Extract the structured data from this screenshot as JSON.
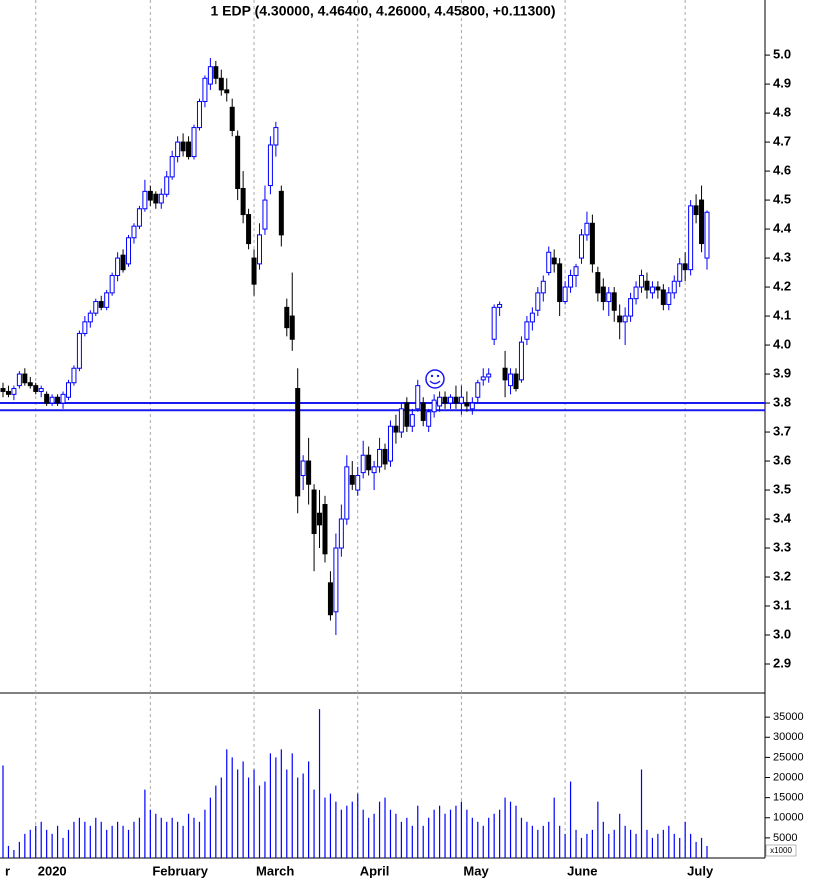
{
  "chart_data": [
    {
      "type": "candlestick",
      "title": "1 EDP (4.30000, 4.46400, 4.26000, 4.45800, +0.11300)",
      "up_color": "#0000ff",
      "down_color": "#000000",
      "line_color": "#1a1aee",
      "hlines": [
        3.8,
        3.775
      ],
      "ylim": [
        2.8,
        5.19
      ],
      "yticks": [
        2.9,
        {
          "value": 3,
          "label": "3.0"
        },
        3.1,
        3.2,
        3.3,
        3.4,
        3.5,
        3.6,
        3.7,
        3.8,
        3.9,
        {
          "value": 4,
          "label": "4.0"
        },
        4.1,
        4.2,
        4.3,
        4.4,
        4.5,
        4.6,
        4.7,
        4.8,
        4.9,
        {
          "value": 5,
          "label": "5.0"
        }
      ],
      "categories": [
        "r",
        null,
        null,
        null,
        null,
        null,
        "2020",
        null,
        null,
        null,
        null,
        null,
        null,
        null,
        null,
        null,
        null,
        null,
        null,
        null,
        null,
        null,
        null,
        null,
        null,
        null,
        null,
        "February",
        null,
        null,
        null,
        null,
        null,
        null,
        null,
        null,
        null,
        null,
        null,
        null,
        null,
        null,
        null,
        null,
        null,
        null,
        "March",
        null,
        null,
        null,
        null,
        null,
        null,
        null,
        null,
        null,
        null,
        null,
        null,
        null,
        null,
        null,
        null,
        null,
        null,
        "April",
        null,
        null,
        null,
        null,
        null,
        null,
        null,
        null,
        null,
        null,
        null,
        null,
        null,
        null,
        null,
        null,
        null,
        null,
        "May",
        null,
        null,
        null,
        null,
        null,
        null,
        null,
        null,
        null,
        null,
        null,
        null,
        null,
        null,
        null,
        null,
        null,
        null,
        "June",
        null,
        null,
        null,
        null,
        null,
        null,
        null,
        null,
        null,
        null,
        null,
        null,
        null,
        null,
        null,
        null,
        null,
        null,
        null,
        null,
        null,
        "July",
        null,
        null,
        null,
        null
      ],
      "ohlc": [
        [
          3.85,
          3.87,
          3.82,
          3.84
        ],
        [
          3.84,
          3.86,
          3.82,
          3.83
        ],
        [
          3.83,
          3.86,
          3.81,
          3.85
        ],
        [
          3.86,
          3.91,
          3.85,
          3.9
        ],
        [
          3.9,
          3.92,
          3.86,
          3.87
        ],
        [
          3.87,
          3.89,
          3.85,
          3.86
        ],
        [
          3.86,
          3.87,
          3.83,
          3.84
        ],
        [
          3.84,
          3.86,
          3.82,
          3.85
        ],
        [
          3.83,
          3.84,
          3.79,
          3.8
        ],
        [
          3.8,
          3.83,
          3.79,
          3.82
        ],
        [
          3.82,
          3.83,
          3.79,
          3.8
        ],
        [
          3.8,
          3.84,
          3.78,
          3.83
        ],
        [
          3.82,
          3.88,
          3.81,
          3.87
        ],
        [
          3.87,
          3.93,
          3.86,
          3.92
        ],
        [
          3.92,
          4.05,
          3.91,
          4.04
        ],
        [
          4.04,
          4.1,
          4.03,
          4.08
        ],
        [
          4.08,
          4.12,
          4.06,
          4.11
        ],
        [
          4.11,
          4.16,
          4.1,
          4.15
        ],
        [
          4.15,
          4.17,
          4.12,
          4.13
        ],
        [
          4.13,
          4.19,
          4.12,
          4.18
        ],
        [
          4.18,
          4.25,
          4.17,
          4.24
        ],
        [
          4.24,
          4.32,
          4.22,
          4.3
        ],
        [
          4.31,
          4.33,
          4.25,
          4.26
        ],
        [
          4.28,
          4.38,
          4.27,
          4.37
        ],
        [
          4.37,
          4.42,
          4.35,
          4.41
        ],
        [
          4.41,
          4.48,
          4.4,
          4.47
        ],
        [
          4.47,
          4.57,
          4.46,
          4.53
        ],
        [
          4.53,
          4.55,
          4.48,
          4.5
        ],
        [
          4.52,
          4.53,
          4.47,
          4.49
        ],
        [
          4.49,
          4.54,
          4.47,
          4.52
        ],
        [
          4.52,
          4.6,
          4.51,
          4.58
        ],
        [
          4.58,
          4.67,
          4.57,
          4.65
        ],
        [
          4.65,
          4.72,
          4.63,
          4.7
        ],
        [
          4.7,
          4.73,
          4.65,
          4.67
        ],
        [
          4.7,
          4.72,
          4.64,
          4.65
        ],
        [
          4.65,
          4.76,
          4.64,
          4.75
        ],
        [
          4.75,
          4.85,
          4.74,
          4.84
        ],
        [
          4.84,
          4.93,
          4.82,
          4.92
        ],
        [
          4.9,
          4.99,
          4.88,
          4.96
        ],
        [
          4.96,
          4.98,
          4.9,
          4.92
        ],
        [
          4.92,
          4.95,
          4.86,
          4.88
        ],
        [
          4.88,
          4.92,
          4.84,
          4.87
        ],
        [
          4.82,
          4.85,
          4.72,
          4.74
        ],
        [
          4.72,
          4.74,
          4.5,
          4.54
        ],
        [
          4.54,
          4.6,
          4.42,
          4.45
        ],
        [
          4.45,
          4.47,
          4.33,
          4.35
        ],
        [
          4.3,
          4.33,
          4.17,
          4.21
        ],
        [
          4.28,
          4.42,
          4.26,
          4.38
        ],
        [
          4.4,
          4.55,
          4.38,
          4.5
        ],
        [
          4.55,
          4.72,
          4.52,
          4.69
        ],
        [
          4.69,
          4.77,
          4.65,
          4.75
        ],
        [
          4.53,
          4.55,
          4.34,
          4.38
        ],
        [
          4.13,
          4.16,
          4.03,
          4.06
        ],
        [
          4.1,
          4.25,
          3.98,
          4.02
        ],
        [
          3.85,
          3.92,
          3.42,
          3.48
        ],
        [
          3.55,
          3.62,
          3.5,
          3.6
        ],
        [
          3.6,
          3.68,
          3.45,
          3.52
        ],
        [
          3.5,
          3.52,
          3.22,
          3.35
        ],
        [
          3.42,
          3.5,
          3.3,
          3.38
        ],
        [
          3.45,
          3.48,
          3.25,
          3.28
        ],
        [
          3.18,
          3.22,
          3.05,
          3.07
        ],
        [
          3.08,
          3.35,
          3.0,
          3.3
        ],
        [
          3.3,
          3.45,
          3.27,
          3.4
        ],
        [
          3.4,
          3.62,
          3.38,
          3.58
        ],
        [
          3.55,
          3.6,
          3.5,
          3.52
        ],
        [
          3.5,
          3.58,
          3.48,
          3.55
        ],
        [
          3.56,
          3.67,
          3.54,
          3.62
        ],
        [
          3.62,
          3.65,
          3.55,
          3.57
        ],
        [
          3.56,
          3.6,
          3.5,
          3.58
        ],
        [
          3.58,
          3.68,
          3.56,
          3.64
        ],
        [
          3.64,
          3.66,
          3.57,
          3.59
        ],
        [
          3.6,
          3.74,
          3.58,
          3.72
        ],
        [
          3.72,
          3.76,
          3.66,
          3.7
        ],
        [
          3.7,
          3.8,
          3.68,
          3.78
        ],
        [
          3.8,
          3.82,
          3.7,
          3.72
        ],
        [
          3.72,
          3.78,
          3.7,
          3.76
        ],
        [
          3.78,
          3.88,
          3.77,
          3.86
        ],
        [
          3.8,
          3.82,
          3.72,
          3.74
        ],
        [
          3.72,
          3.78,
          3.7,
          3.77
        ],
        [
          3.77,
          3.83,
          3.75,
          3.81
        ],
        [
          3.79,
          3.84,
          3.77,
          3.82
        ],
        [
          3.82,
          3.84,
          3.78,
          3.8
        ],
        [
          3.8,
          3.83,
          3.78,
          3.82
        ],
        [
          3.82,
          3.86,
          3.78,
          3.8
        ],
        [
          3.8,
          3.86,
          3.76,
          3.82
        ],
        [
          3.8,
          3.84,
          3.77,
          3.79
        ],
        [
          3.78,
          3.82,
          3.76,
          3.8
        ],
        [
          3.82,
          3.88,
          3.8,
          3.87
        ],
        [
          3.88,
          3.92,
          3.86,
          3.89
        ],
        [
          3.89,
          3.92,
          3.87,
          3.9
        ],
        [
          4.02,
          4.14,
          4.0,
          4.13
        ],
        [
          4.13,
          4.15,
          4.1,
          4.14
        ],
        [
          3.92,
          3.98,
          3.82,
          3.88
        ],
        [
          3.86,
          3.92,
          3.83,
          3.9
        ],
        [
          3.9,
          3.92,
          3.84,
          3.85
        ],
        [
          3.88,
          4.03,
          3.87,
          4.01
        ],
        [
          4.02,
          4.1,
          4.0,
          4.08
        ],
        [
          4.08,
          4.13,
          4.05,
          4.11
        ],
        [
          4.12,
          4.2,
          4.1,
          4.18
        ],
        [
          4.18,
          4.24,
          4.15,
          4.22
        ],
        [
          4.25,
          4.34,
          4.24,
          4.32
        ],
        [
          4.3,
          4.33,
          4.25,
          4.28
        ],
        [
          4.28,
          4.3,
          4.1,
          4.15
        ],
        [
          4.15,
          4.22,
          4.14,
          4.2
        ],
        [
          4.2,
          4.26,
          4.18,
          4.24
        ],
        [
          4.24,
          4.28,
          4.2,
          4.27
        ],
        [
          4.3,
          4.4,
          4.28,
          4.38
        ],
        [
          4.38,
          4.46,
          4.36,
          4.42
        ],
        [
          4.42,
          4.45,
          4.25,
          4.28
        ],
        [
          4.25,
          4.27,
          4.15,
          4.18
        ],
        [
          4.2,
          4.23,
          4.12,
          4.15
        ],
        [
          4.15,
          4.2,
          4.1,
          4.18
        ],
        [
          4.18,
          4.2,
          4.08,
          4.12
        ],
        [
          4.1,
          4.14,
          4.02,
          4.08
        ],
        [
          4.08,
          4.13,
          4.0,
          4.1
        ],
        [
          4.1,
          4.18,
          4.08,
          4.16
        ],
        [
          4.16,
          4.22,
          4.14,
          4.2
        ],
        [
          4.2,
          4.26,
          4.18,
          4.24
        ],
        [
          4.22,
          4.25,
          4.16,
          4.19
        ],
        [
          4.18,
          4.22,
          4.16,
          4.2
        ],
        [
          4.2,
          4.22,
          4.16,
          4.19
        ],
        [
          4.19,
          4.21,
          4.12,
          4.14
        ],
        [
          4.14,
          4.2,
          4.12,
          4.18
        ],
        [
          4.18,
          4.24,
          4.16,
          4.22
        ],
        [
          4.22,
          4.3,
          4.2,
          4.28
        ],
        [
          4.28,
          4.32,
          4.22,
          4.26
        ],
        [
          4.26,
          4.5,
          4.24,
          4.48
        ],
        [
          4.48,
          4.52,
          4.42,
          4.45
        ],
        [
          4.5,
          4.55,
          4.32,
          4.35
        ],
        [
          4.3,
          4.464,
          4.26,
          4.458
        ]
      ]
    },
    {
      "type": "bar",
      "color": "#0000ff",
      "axis_note": "x1000",
      "ylim": [
        0,
        41000
      ],
      "yticks": [
        5000,
        10000,
        15000,
        20000,
        25000,
        30000,
        35000
      ],
      "values": [
        23000,
        3000,
        2000,
        4000,
        6000,
        7000,
        8000,
        9000,
        7000,
        6000,
        8000,
        5000,
        7000,
        9000,
        10000,
        9000,
        8000,
        10000,
        9000,
        7000,
        8000,
        9000,
        8000,
        7000,
        9000,
        10000,
        17000,
        12000,
        11000,
        10000,
        9000,
        10000,
        9000,
        8000,
        11000,
        10000,
        9000,
        12000,
        15000,
        18000,
        20000,
        27000,
        25000,
        22000,
        24000,
        20000,
        22000,
        18000,
        19000,
        26000,
        25000,
        27000,
        22000,
        26000,
        20000,
        21000,
        24000,
        17000,
        37000,
        15000,
        16000,
        14000,
        12000,
        13000,
        14000,
        16000,
        12000,
        10000,
        11000,
        14000,
        15000,
        12000,
        11000,
        9000,
        10000,
        8000,
        13000,
        8000,
        10000,
        12000,
        13000,
        11000,
        12000,
        13000,
        14000,
        12000,
        10000,
        9000,
        8000,
        10000,
        11000,
        12000,
        15000,
        14000,
        13000,
        10000,
        9000,
        8000,
        7000,
        8000,
        9000,
        15000,
        8000,
        6000,
        19000,
        7000,
        5000,
        6000,
        7000,
        14000,
        9000,
        6000,
        7000,
        11000,
        8000,
        7000,
        6000,
        22000,
        7000,
        5000,
        6000,
        7000,
        8000,
        6000,
        5000,
        9000,
        6000,
        4000,
        5000,
        3000
      ]
    }
  ]
}
